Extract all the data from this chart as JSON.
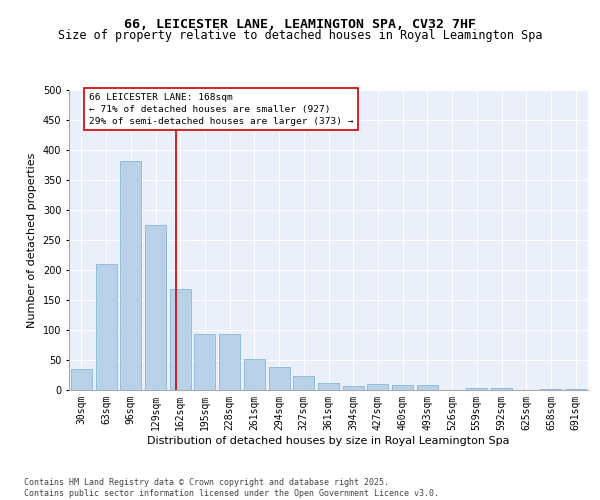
{
  "title": "66, LEICESTER LANE, LEAMINGTON SPA, CV32 7HF",
  "subtitle": "Size of property relative to detached houses in Royal Leamington Spa",
  "xlabel": "Distribution of detached houses by size in Royal Leamington Spa",
  "ylabel": "Number of detached properties",
  "categories": [
    "30sqm",
    "63sqm",
    "96sqm",
    "129sqm",
    "162sqm",
    "195sqm",
    "228sqm",
    "261sqm",
    "294sqm",
    "327sqm",
    "361sqm",
    "394sqm",
    "427sqm",
    "460sqm",
    "493sqm",
    "526sqm",
    "559sqm",
    "592sqm",
    "625sqm",
    "658sqm",
    "691sqm"
  ],
  "values": [
    35,
    210,
    382,
    275,
    168,
    93,
    93,
    52,
    39,
    24,
    11,
    7,
    10,
    8,
    8,
    0,
    4,
    4,
    0,
    1,
    1
  ],
  "bar_color": "#b8d0e8",
  "bar_edge_color": "#7bafd4",
  "ref_line_color": "#cc0000",
  "annotation_box_text": "66 LEICESTER LANE: 168sqm\n← 71% of detached houses are smaller (927)\n29% of semi-detached houses are larger (373) →",
  "annotation_box_color": "#cc0000",
  "ylim": [
    0,
    500
  ],
  "yticks": [
    0,
    50,
    100,
    150,
    200,
    250,
    300,
    350,
    400,
    450,
    500
  ],
  "background_color": "#eaeff9",
  "grid_color": "#ffffff",
  "footer_text": "Contains HM Land Registry data © Crown copyright and database right 2025.\nContains public sector information licensed under the Open Government Licence v3.0.",
  "title_fontsize": 9.5,
  "subtitle_fontsize": 8.5,
  "xlabel_fontsize": 8,
  "ylabel_fontsize": 8,
  "tick_fontsize": 7,
  "annotation_fontsize": 6.8
}
